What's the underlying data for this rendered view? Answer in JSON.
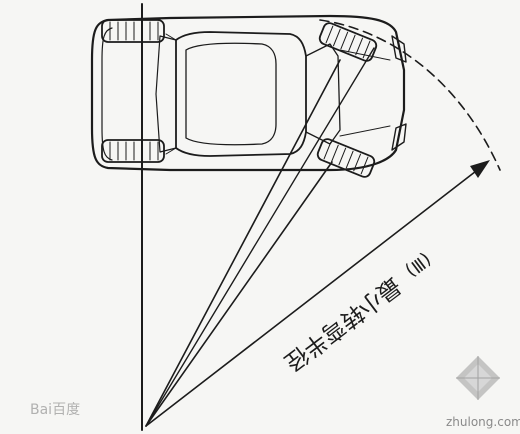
{
  "diagram": {
    "radius_label": "最小转弯半径",
    "label_number": "(Ⅲ)"
  },
  "watermarks": {
    "baidu_text": "Bai百度",
    "zhulong_text": "zhulong.com"
  },
  "colors": {
    "ink": "#1c1c1c",
    "paper": "#f6f6f4",
    "watermark": "#9a9a9a"
  }
}
